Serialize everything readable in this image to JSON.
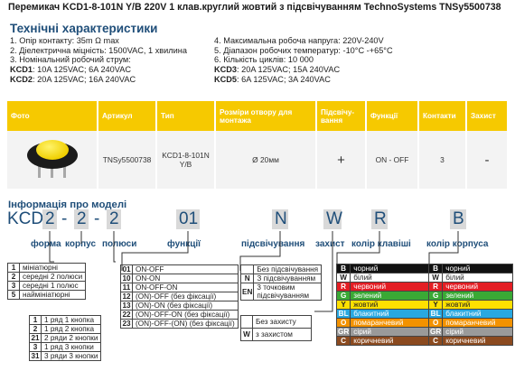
{
  "title": "Перемикач KCD1-8-101N Y/B 220V 1 клав.круглий жовтий з підсвічуванням TechnoSystems TNSy5500738",
  "specs_heading": "Технічні характеристики",
  "specs_left": [
    "1. Опір контакту: 35m Ω  max",
    "2. Діелектрична міцність:  1500VAC, 1 хвилина",
    "3. Номінальний робочий струм:"
  ],
  "specs_left_ratings": [
    {
      "key": "KCD1",
      "value": ": 10A 125VAC; 6A 240VAC"
    },
    {
      "key": "KCD2",
      "value": ": 20A 125VAC; 16A 240VAC"
    }
  ],
  "specs_right": [
    "4. Максимальна робоча напруга: 220V-240V",
    "5. Діапазон робочих температур: -10°C -+65°C",
    "6. Кількість циклів: 10 000"
  ],
  "specs_right_ratings": [
    {
      "key": "KCD3",
      "value": ": 20A 125VAC; 15A 240VAC"
    },
    {
      "key": "KCD5",
      "value": ": 6A 125VAC; 3A 240VAC"
    }
  ],
  "table": {
    "headers": [
      "Фото",
      "Артикул",
      "Тип",
      "Розміри отвору для монтажа",
      "Підсвічу-вання",
      "Функції",
      "Контакти",
      "Захист"
    ],
    "row": {
      "article": "TNSy5500738",
      "type": "KCD1-8-101N Y/B",
      "size": "Ø 20мм",
      "light": "+",
      "func": "ON - OFF",
      "contacts": "3",
      "protect": "-"
    }
  },
  "info_heading": "Інформація про моделі",
  "code": {
    "prefix": "KCD",
    "d1": "2",
    "sep1": "-",
    "d2": "2",
    "sep2": "-",
    "d3": "2",
    "d4": "01",
    "d5": "N",
    "d6": "W",
    "d7": "R",
    "d8": "B"
  },
  "labels": {
    "shape": "форма",
    "body": "корпус",
    "poles": "полюси",
    "functions": "функції",
    "lighting": "підсвічування",
    "protection": "захист",
    "key_color": "колір клавіші",
    "body_color": "колір корпуса"
  },
  "shape_options": [
    {
      "k": "1",
      "v": "мініатюрні"
    },
    {
      "k": "2",
      "v": "середні 2 полюси"
    },
    {
      "k": "3",
      "v": "середні 1 полюс"
    },
    {
      "k": "5",
      "v": "наймініатюрні"
    }
  ],
  "pole_options": [
    {
      "k": "1",
      "v": "1 ряд 1 кнопка"
    },
    {
      "k": "2",
      "v": "1 ряд 2 кнопка"
    },
    {
      "k": "21",
      "v": "2 ряди 2 кнопки"
    },
    {
      "k": "3",
      "v": "1 ряд 3 кнопки"
    },
    {
      "k": "31",
      "v": "3 ряди 3 кнопки"
    }
  ],
  "function_options": [
    {
      "k": "01",
      "v": "ON-OFF"
    },
    {
      "k": "10",
      "v": "ON-ON"
    },
    {
      "k": "11",
      "v": "ON-OFF-ON"
    },
    {
      "k": "12",
      "v": "(ON)-OFF (без фіксації)"
    },
    {
      "k": "13",
      "v": "(ON)-ON (без фіксації)"
    },
    {
      "k": "22",
      "v": "(ON)-OFF-ON (без фіксації)"
    },
    {
      "k": "23",
      "v": "(ON)-OFF-(ON) (без фіксації)"
    }
  ],
  "light_options": [
    {
      "k": "",
      "v": "Без підсвічування"
    },
    {
      "k": "N",
      "v": "З підсвічуванням"
    },
    {
      "k": "EN",
      "v": "3 точковим підсвічуванням"
    }
  ],
  "protect_options": [
    {
      "k": "",
      "v": "Без захисту"
    },
    {
      "k": "W",
      "v": "з захистом"
    }
  ],
  "key_colors": [
    {
      "k": "B",
      "v": "чорний",
      "color": "#111111"
    },
    {
      "k": "W",
      "v": "білий",
      "color": "#ffffff"
    },
    {
      "k": "R",
      "v": "червоний",
      "color": "#e31e24"
    },
    {
      "k": "G",
      "v": "зелений",
      "color": "#3aa935"
    },
    {
      "k": "Y",
      "v": "жовтий",
      "color": "#ffe000"
    },
    {
      "k": "BL",
      "v": "блакитний",
      "color": "#29a8e0"
    },
    {
      "k": "O",
      "v": "помаранчевий",
      "color": "#f39200"
    },
    {
      "k": "GR",
      "v": "сірий",
      "color": "#9a9a9a"
    },
    {
      "k": "C",
      "v": "коричневий",
      "color": "#8b4a1f"
    }
  ],
  "body_colors": [
    {
      "k": "B",
      "v": "чорний",
      "color": "#111111"
    },
    {
      "k": "W",
      "v": "білий",
      "color": "#ffffff"
    },
    {
      "k": "R",
      "v": "червоний",
      "color": "#e31e24"
    },
    {
      "k": "G",
      "v": "зелений",
      "color": "#3aa935"
    },
    {
      "k": "Y",
      "v": "жовтий",
      "color": "#ffe000"
    },
    {
      "k": "BL",
      "v": "блакитний",
      "color": "#29a8e0"
    },
    {
      "k": "O",
      "v": "помаранчевий",
      "color": "#f39200"
    },
    {
      "k": "GR",
      "v": "сірий",
      "color": "#9a9a9a"
    },
    {
      "k": "C",
      "v": "коричневий",
      "color": "#8b4a1f"
    }
  ],
  "accent_color": "#1f4e79",
  "header_color": "#f6c900"
}
